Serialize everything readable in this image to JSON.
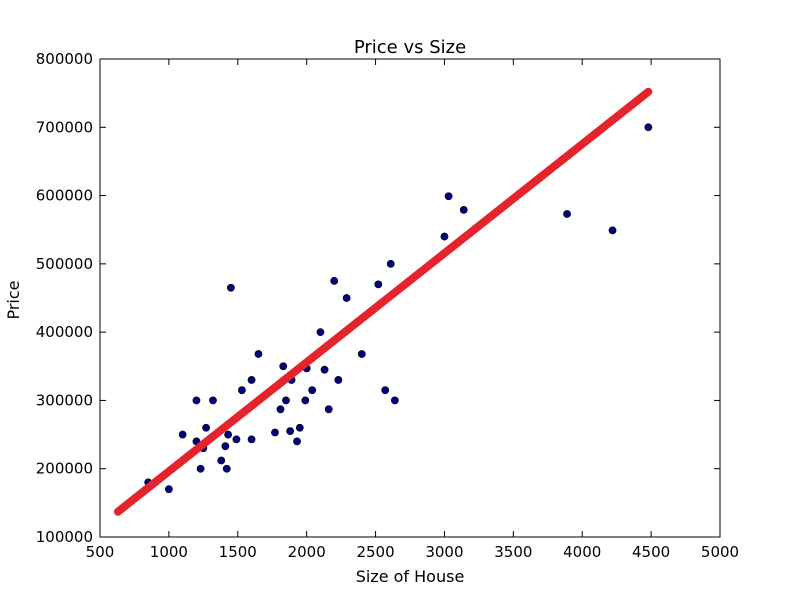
{
  "chart_data": {
    "type": "scatter",
    "title": "Price vs Size",
    "xlabel": "Size of House",
    "ylabel": "Price",
    "xlim": [
      500,
      5000
    ],
    "ylim": [
      100000,
      800000
    ],
    "xticks": [
      500,
      1000,
      1500,
      2000,
      2500,
      3000,
      3500,
      4000,
      4500,
      5000
    ],
    "yticks": [
      100000,
      200000,
      300000,
      400000,
      500000,
      600000,
      700000,
      800000
    ],
    "grid": false,
    "colors": {
      "points": "#00007f",
      "fit": "#e5232d"
    },
    "series": [
      {
        "kind": "scatter",
        "points": [
          [
            850,
            180000
          ],
          [
            1000,
            170000
          ],
          [
            1100,
            250000
          ],
          [
            1200,
            300000
          ],
          [
            1200,
            240000
          ],
          [
            1230,
            200000
          ],
          [
            1250,
            230000
          ],
          [
            1270,
            260000
          ],
          [
            1320,
            300000
          ],
          [
            1380,
            212000
          ],
          [
            1410,
            233000
          ],
          [
            1420,
            200000
          ],
          [
            1430,
            250000
          ],
          [
            1450,
            465000
          ],
          [
            1490,
            243000
          ],
          [
            1530,
            315000
          ],
          [
            1600,
            330000
          ],
          [
            1600,
            243000
          ],
          [
            1650,
            368000
          ],
          [
            1770,
            253000
          ],
          [
            1810,
            287000
          ],
          [
            1830,
            350000
          ],
          [
            1850,
            300000
          ],
          [
            1880,
            255000
          ],
          [
            1890,
            330000
          ],
          [
            1930,
            240000
          ],
          [
            1950,
            260000
          ],
          [
            1990,
            300000
          ],
          [
            2000,
            347000
          ],
          [
            2040,
            315000
          ],
          [
            2100,
            400000
          ],
          [
            2130,
            345000
          ],
          [
            2160,
            287000
          ],
          [
            2200,
            475000
          ],
          [
            2230,
            330000
          ],
          [
            2290,
            450000
          ],
          [
            2400,
            368000
          ],
          [
            2520,
            470000
          ],
          [
            2570,
            315000
          ],
          [
            2610,
            500000
          ],
          [
            2640,
            300000
          ],
          [
            3000,
            540000
          ],
          [
            3030,
            599000
          ],
          [
            3140,
            579000
          ],
          [
            3890,
            573000
          ],
          [
            4220,
            549000
          ],
          [
            4480,
            700000
          ]
        ]
      },
      {
        "kind": "line",
        "points": [
          [
            630,
            137000
          ],
          [
            4480,
            752000
          ]
        ]
      }
    ]
  }
}
